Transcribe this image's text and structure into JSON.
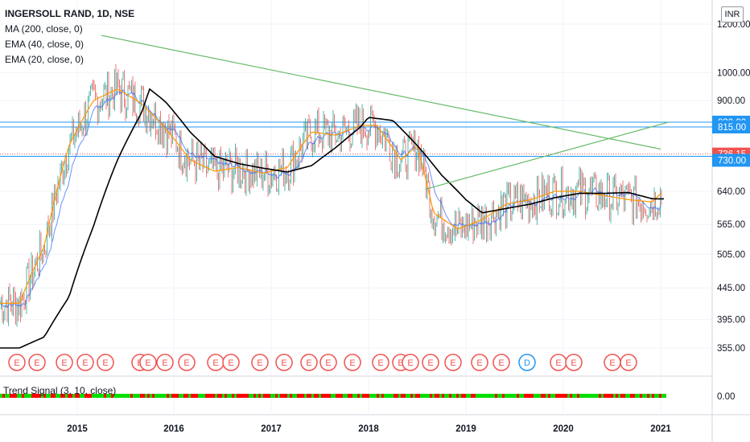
{
  "legend": {
    "symbol_line": "INGERSOLL RAND, 1D, NSE",
    "ma200": "MA (200, close, 0)",
    "ema40": "EMA (40, close, 0)",
    "ema20": "EMA (20, close, 0)"
  },
  "indicator_label": "Trend Signal (3, 10, close)",
  "currency_button": "INR",
  "chart_data": {
    "type": "candlestick",
    "ylim": [
      330,
      1230
    ],
    "y_scale": "log",
    "y_ticks": [
      "1200.00",
      "1000.00",
      "900.00",
      "640.00",
      "565.00",
      "505.00",
      "445.00",
      "395.00",
      "355.00"
    ],
    "x_ticks": [
      "2015",
      "2016",
      "2017",
      "2018",
      "2019",
      "2020",
      "2021"
    ],
    "price_labels": [
      {
        "text": "830.00",
        "value": 830,
        "color": "#2196f3"
      },
      {
        "text": "815.00",
        "value": 815,
        "color": "#2196f3"
      },
      {
        "text": "736.15",
        "value": 736.15,
        "color": "#ef5350"
      },
      {
        "text": "730.00",
        "value": 730,
        "color": "#2196f3"
      }
    ],
    "horizontal_lines": [
      830,
      815,
      736.15,
      730
    ],
    "trendlines": [
      {
        "from": [
          "2015-04",
          1150
        ],
        "to": [
          "2021-01",
          750
        ],
        "color": "#66bb6a"
      },
      {
        "from": [
          "2018-08",
          645
        ],
        "to": [
          "2021-02",
          830
        ],
        "color": "#66bb6a"
      }
    ],
    "series": [
      {
        "name": "MA (200, close, 0)",
        "color": "#000000",
        "values": [
          [
            "2014-06",
            355
          ],
          [
            "2014-09",
            370
          ],
          [
            "2014-12",
            430
          ],
          [
            "2015-03",
            560
          ],
          [
            "2015-06",
            720
          ],
          [
            "2015-09",
            860
          ],
          [
            "2015-10",
            940
          ],
          [
            "2015-12",
            895
          ],
          [
            "2016-03",
            800
          ],
          [
            "2016-06",
            730
          ],
          [
            "2016-09",
            710
          ],
          [
            "2016-12",
            698
          ],
          [
            "2017-03",
            688
          ],
          [
            "2017-06",
            705
          ],
          [
            "2017-09",
            755
          ],
          [
            "2017-12",
            815
          ],
          [
            "2018-01",
            845
          ],
          [
            "2018-04",
            835
          ],
          [
            "2018-07",
            760
          ],
          [
            "2018-10",
            680
          ],
          [
            "2019-01",
            620
          ],
          [
            "2019-03",
            590
          ],
          [
            "2019-06",
            600
          ],
          [
            "2019-09",
            610
          ],
          [
            "2019-12",
            625
          ],
          [
            "2020-03",
            635
          ],
          [
            "2020-06",
            635
          ],
          [
            "2020-09",
            637
          ],
          [
            "2020-12",
            622
          ],
          [
            "2021-01",
            622
          ]
        ]
      },
      {
        "name": "EMA (40, close, 0)",
        "color": "#ff9800",
        "values": [
          [
            "2014-06",
            420
          ],
          [
            "2014-09",
            520
          ],
          [
            "2014-12",
            760
          ],
          [
            "2015-03",
            900
          ],
          [
            "2015-06",
            940
          ],
          [
            "2015-09",
            890
          ],
          [
            "2015-12",
            810
          ],
          [
            "2016-03",
            720
          ],
          [
            "2016-06",
            690
          ],
          [
            "2016-09",
            700
          ],
          [
            "2016-12",
            685
          ],
          [
            "2017-03",
            700
          ],
          [
            "2017-06",
            800
          ],
          [
            "2017-09",
            790
          ],
          [
            "2017-12",
            820
          ],
          [
            "2018-02",
            820
          ],
          [
            "2018-05",
            720
          ],
          [
            "2018-07",
            760
          ],
          [
            "2018-09",
            590
          ],
          [
            "2018-12",
            555
          ],
          [
            "2019-03",
            575
          ],
          [
            "2019-06",
            610
          ],
          [
            "2019-09",
            620
          ],
          [
            "2019-12",
            640
          ],
          [
            "2020-03",
            640
          ],
          [
            "2020-06",
            630
          ],
          [
            "2020-09",
            620
          ],
          [
            "2020-12",
            615
          ],
          [
            "2021-01",
            635
          ]
        ]
      },
      {
        "name": "Trend Signal (3, 10, close)",
        "color": "#ff0000",
        "values": [
          [
            "2014-06",
            0
          ],
          [
            "2021-01",
            0
          ]
        ]
      }
    ],
    "indicator_ticks": [
      "0.00"
    ],
    "event_markers": [
      "E",
      "E",
      "E",
      "E",
      "E",
      "E",
      "E",
      "E",
      "E",
      "E",
      "E",
      "E",
      "E",
      "E",
      "E",
      "E",
      "E",
      "E",
      "E",
      "E",
      "E",
      "E",
      "E",
      "D",
      "E",
      "E",
      "E",
      "E"
    ]
  }
}
